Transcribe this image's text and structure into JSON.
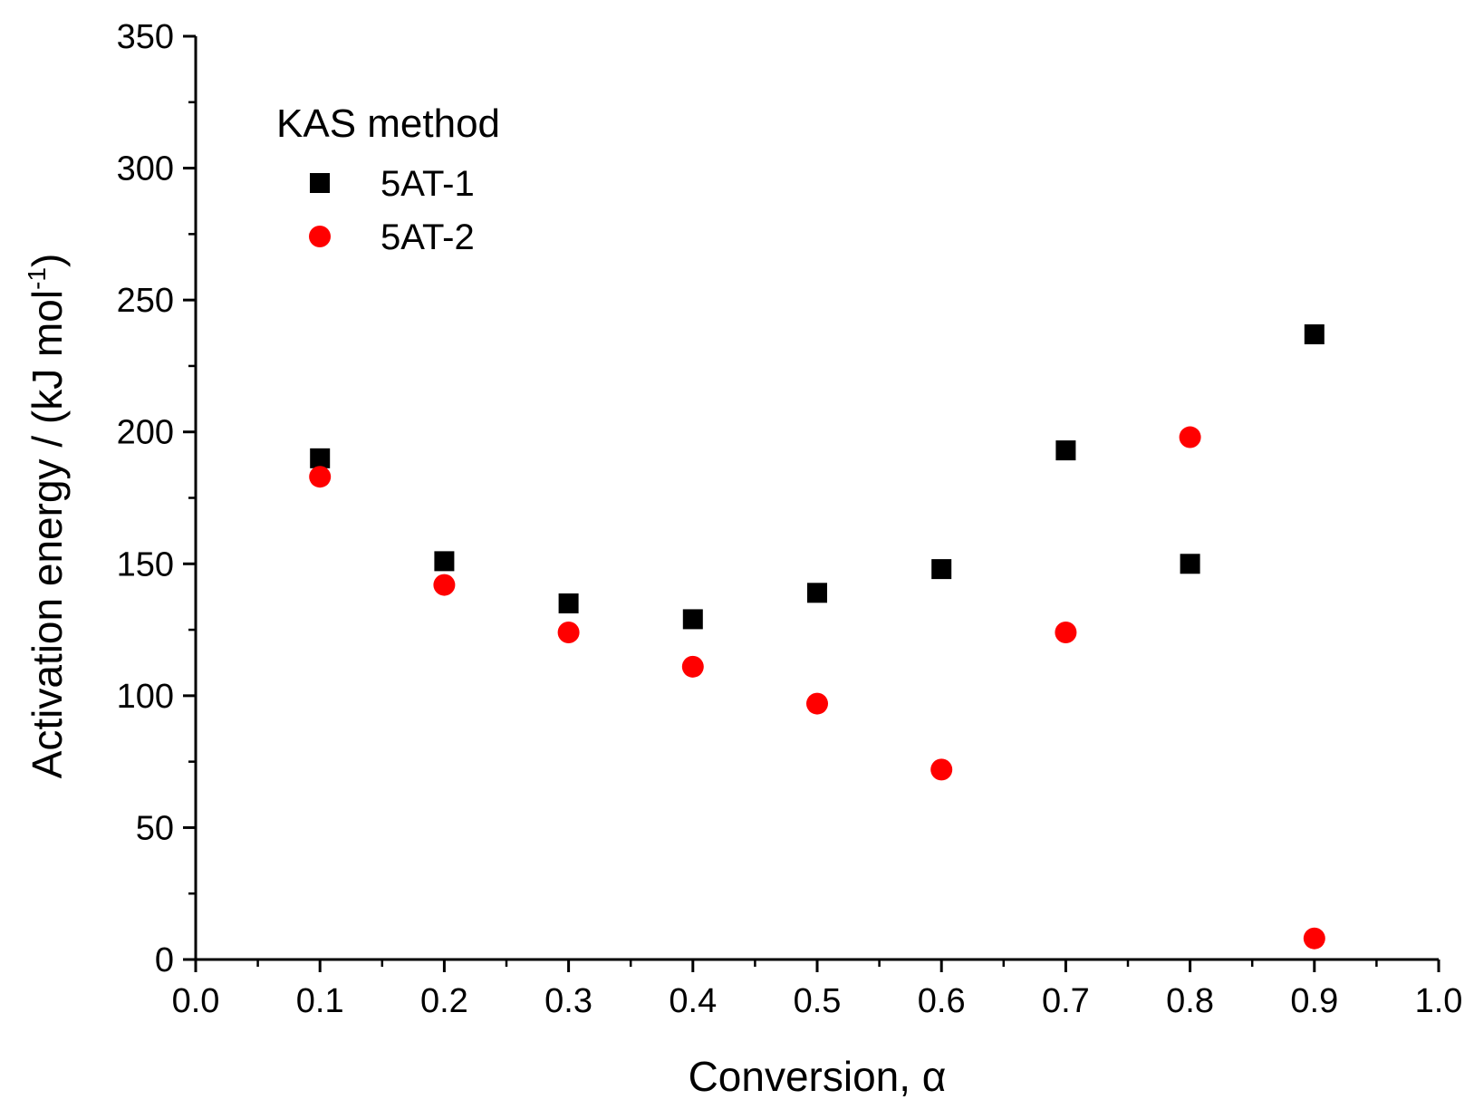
{
  "chart_data": {
    "type": "scatter",
    "title": "",
    "xlabel": "Conversion, α",
    "ylabel_main": "Activation energy / (kJ mol",
    "ylabel_sup": "-1",
    "ylabel_close": ")",
    "xlim": [
      0.0,
      1.0
    ],
    "ylim": [
      0,
      350
    ],
    "x_ticks": [
      0.0,
      0.1,
      0.2,
      0.3,
      0.4,
      0.5,
      0.6,
      0.7,
      0.8,
      0.9,
      1.0
    ],
    "x_tick_labels": [
      "0.0",
      "0.1",
      "0.2",
      "0.3",
      "0.4",
      "0.5",
      "0.6",
      "0.7",
      "0.8",
      "0.9",
      "1.0"
    ],
    "y_ticks": [
      0,
      50,
      100,
      150,
      200,
      250,
      300,
      350
    ],
    "y_tick_labels": [
      "0",
      "50",
      "100",
      "150",
      "200",
      "250",
      "300",
      "350"
    ],
    "legend_title": "KAS method",
    "legend_position": "top-left",
    "grid": false,
    "series": [
      {
        "name": "5AT-1",
        "marker": "square",
        "color": "#000000",
        "x": [
          0.1,
          0.2,
          0.3,
          0.4,
          0.5,
          0.6,
          0.7,
          0.8,
          0.9
        ],
        "y": [
          190,
          151,
          135,
          129,
          139,
          148,
          193,
          150,
          237
        ]
      },
      {
        "name": "5AT-2",
        "marker": "circle",
        "color": "#ff0000",
        "x": [
          0.1,
          0.2,
          0.3,
          0.4,
          0.5,
          0.6,
          0.7,
          0.8,
          0.9
        ],
        "y": [
          183,
          142,
          124,
          111,
          97,
          72,
          124,
          198,
          8
        ]
      }
    ]
  }
}
